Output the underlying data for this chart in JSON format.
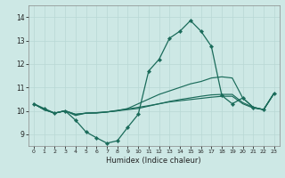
{
  "xlabel": "Humidex (Indice chaleur)",
  "xlim": [
    -0.5,
    23.5
  ],
  "ylim": [
    8.5,
    14.5
  ],
  "yticks": [
    9,
    10,
    11,
    12,
    13,
    14
  ],
  "xticks": [
    0,
    1,
    2,
    3,
    4,
    5,
    6,
    7,
    8,
    9,
    10,
    11,
    12,
    13,
    14,
    15,
    16,
    17,
    18,
    19,
    20,
    21,
    22,
    23
  ],
  "bg_color": "#cde8e5",
  "grid_color": "#b8d8d4",
  "line_color": "#1a6b5a",
  "main_series": [
    10.3,
    10.1,
    9.9,
    10.0,
    9.6,
    9.1,
    8.85,
    8.62,
    8.72,
    9.3,
    9.85,
    11.7,
    12.2,
    13.1,
    13.4,
    13.85,
    13.4,
    12.75,
    10.65,
    10.3,
    10.55,
    10.15,
    10.05,
    10.75
  ],
  "line2": [
    10.3,
    10.05,
    9.9,
    10.0,
    9.8,
    9.9,
    9.92,
    9.95,
    10.0,
    10.1,
    10.3,
    10.5,
    10.7,
    10.85,
    11.0,
    11.15,
    11.25,
    11.4,
    11.45,
    11.4,
    10.55,
    10.15,
    10.05,
    10.75
  ],
  "line3": [
    10.3,
    10.05,
    9.9,
    10.0,
    9.85,
    9.9,
    9.9,
    9.95,
    10.0,
    10.05,
    10.1,
    10.2,
    10.3,
    10.4,
    10.48,
    10.55,
    10.62,
    10.68,
    10.7,
    10.7,
    10.35,
    10.15,
    10.05,
    10.75
  ],
  "line4": [
    10.3,
    10.05,
    9.9,
    10.0,
    9.85,
    9.9,
    9.92,
    9.95,
    10.02,
    10.08,
    10.15,
    10.22,
    10.3,
    10.38,
    10.43,
    10.48,
    10.53,
    10.58,
    10.62,
    10.62,
    10.3,
    10.12,
    10.05,
    10.75
  ]
}
